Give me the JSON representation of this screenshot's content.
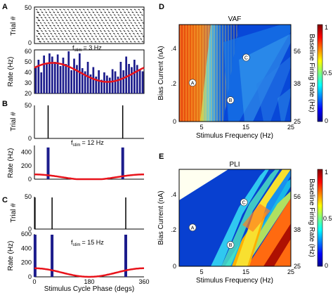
{
  "chart_data": [
    {
      "panel_label": "A",
      "type": "raster+bar",
      "stim_label_main": "f",
      "stim_label_sub": "stim",
      "stim_label_value": "= 3 Hz",
      "raster": {
        "ylabel": "Trial #",
        "yticks": [
          "0",
          "50"
        ],
        "ylim": [
          0,
          50
        ]
      },
      "histogram": {
        "type": "bar",
        "ylabel": "Rate (Hz)",
        "ylim": [
          20,
          60
        ],
        "yticks": [
          "20",
          "30",
          "40",
          "50",
          "60"
        ],
        "xlim": [
          0,
          360
        ],
        "values": [
          45,
          52,
          40,
          56,
          48,
          58,
          55,
          50,
          57,
          46,
          54,
          48,
          60,
          42,
          53,
          47,
          58,
          44,
          41,
          50,
          38,
          45,
          36,
          42,
          33,
          40,
          37,
          35,
          43,
          41,
          36,
          50,
          42,
          55,
          48,
          45,
          52,
          47,
          43,
          41
        ],
        "fit": {
          "type": "sinusoid",
          "mean": 40,
          "amplitude": 9,
          "phase_deg_peak": 60,
          "color": "#e8131b"
        }
      }
    },
    {
      "panel_label": "B",
      "type": "raster+bar",
      "stim_label_main": "f",
      "stim_label_sub": "stim",
      "stim_label_value": "= 12 Hz",
      "raster": {
        "ylabel": "Trial #",
        "yticks": [
          "0",
          "50"
        ],
        "ylim": [
          0,
          50
        ],
        "spike_phases": [
          45,
          290
        ]
      },
      "histogram": {
        "type": "bar",
        "ylabel": "Rate (Hz)",
        "ylim": [
          0,
          500
        ],
        "yticks": [
          "0",
          "200",
          "400"
        ],
        "xlim": [
          0,
          360
        ],
        "spike_bars": [
          {
            "x": 45,
            "value": 470
          },
          {
            "x": 290,
            "value": 470
          }
        ],
        "fit": {
          "type": "sinusoid",
          "mean": 30,
          "amplitude": 40,
          "phase_deg_peak": 0,
          "color": "#e8131b"
        }
      }
    },
    {
      "panel_label": "C",
      "type": "raster+bar",
      "stim_label_main": "f",
      "stim_label_sub": "stim",
      "stim_label_value": "= 15 Hz",
      "raster": {
        "ylabel": "Trial #",
        "yticks": [
          "0",
          "50"
        ],
        "ylim": [
          0,
          50
        ],
        "spike_phases": [
          2,
          58,
          300
        ]
      },
      "histogram": {
        "type": "bar",
        "ylabel": "Rate (Hz)",
        "ylim": [
          0,
          600
        ],
        "yticks": [
          "0",
          "200",
          "400",
          "600"
        ],
        "xlim": [
          0,
          360
        ],
        "xticks": [
          "0",
          "180",
          "360"
        ],
        "xlabel": "Stimulus Cycle Phase (degs)",
        "spike_bars": [
          {
            "x": 2,
            "value": 590
          },
          {
            "x": 58,
            "value": 590
          },
          {
            "x": 300,
            "value": 590
          }
        ],
        "fit": {
          "type": "sinusoid",
          "mean": 60,
          "amplitude": 60,
          "phase_deg_peak": 0,
          "color": "#e8131b"
        }
      }
    },
    {
      "panel_label": "D",
      "type": "heatmap",
      "title": "VAF",
      "xlabel": "Stimulus Frequency (Hz)",
      "ylabel": "Bias Current (nA)",
      "ylabel_right": "Baseline Firing Rate (Hz)",
      "xticks": [
        "5",
        "15",
        "25"
      ],
      "xlim": [
        0,
        25
      ],
      "yticks": [
        "0",
        ".2",
        ".4"
      ],
      "ylim": [
        0,
        0.5
      ],
      "right_ticks": [
        "25",
        "38",
        "56"
      ],
      "colorbar": {
        "min": 0,
        "max": 1,
        "ticks": [
          "0",
          "0.5",
          "1"
        ]
      },
      "markers": [
        {
          "label": "A",
          "x": 3,
          "y": 0.2
        },
        {
          "label": "B",
          "x": 11.5,
          "y": 0.11
        },
        {
          "label": "C",
          "x": 15,
          "y": 0.33
        }
      ]
    },
    {
      "panel_label": "E",
      "type": "heatmap",
      "title": "PLI",
      "xlabel": "Stimulus Frequency (Hz)",
      "ylabel": "Bias Current (nA)",
      "ylabel_right": "Baseline Firing Rate (Hz)",
      "xticks": [
        "5",
        "15",
        "25"
      ],
      "xlim": [
        0,
        25
      ],
      "yticks": [
        "0",
        ".2",
        ".4"
      ],
      "ylim": [
        0,
        0.5
      ],
      "right_ticks": [
        "25",
        "38",
        "56"
      ],
      "colorbar": {
        "min": 0,
        "max": 1,
        "ticks": [
          "0",
          "0.5",
          "1"
        ]
      },
      "markers": [
        {
          "label": "A",
          "x": 3,
          "y": 0.2
        },
        {
          "label": "B",
          "x": 11.5,
          "y": 0.11
        },
        {
          "label": "C",
          "x": 14.5,
          "y": 0.33
        }
      ]
    }
  ]
}
